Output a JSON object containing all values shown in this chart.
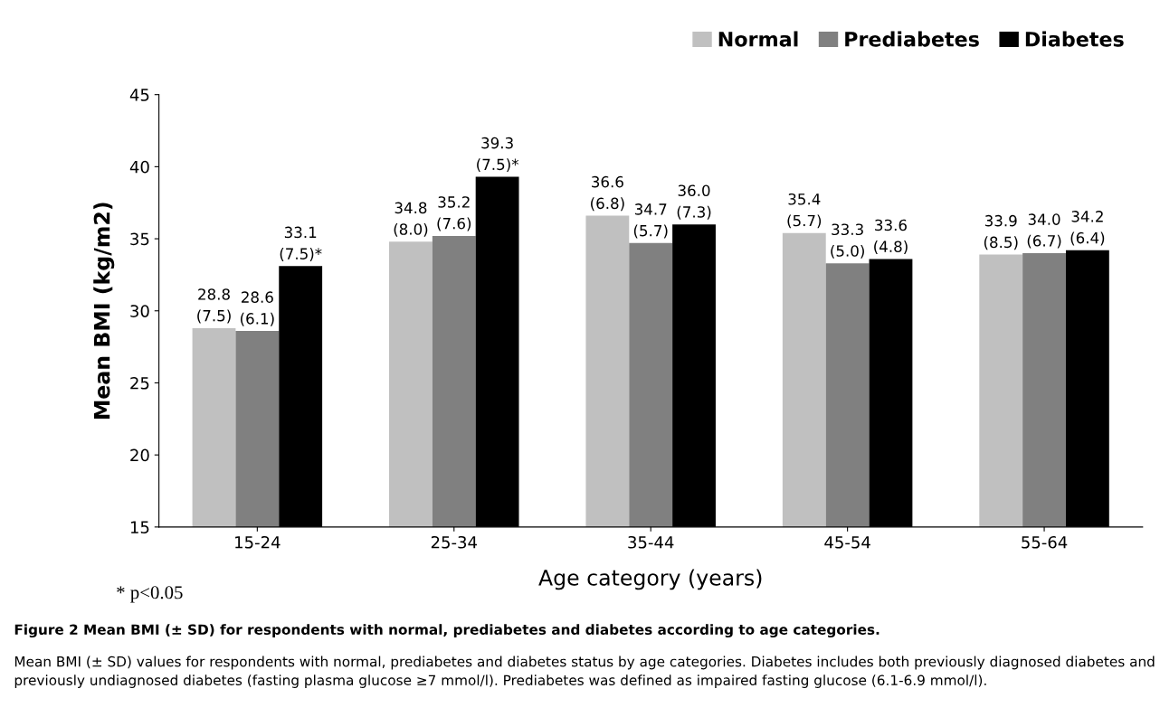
{
  "chart_data": {
    "type": "bar",
    "title": "Figure 2 Mean BMI (± SD) for respondents with normal, prediabetes and diabetes according to age categories.",
    "xlabel": "Age category (years)",
    "ylabel": "Mean BMI (kg/m2)",
    "categories": [
      "15-24",
      "25-34",
      "35-44",
      "45-54",
      "55-64"
    ],
    "series": [
      {
        "name": "Normal",
        "color": "#c0c0c0",
        "values": [
          28.8,
          34.8,
          36.6,
          35.4,
          33.9
        ],
        "value_labels": [
          "28.8\n(7.5)",
          "34.8\n(8.0)",
          "36.6\n(6.8)",
          "35.4\n(5.7)",
          "33.9\n(8.5)"
        ]
      },
      {
        "name": "Prediabetes",
        "color": "#808080",
        "values": [
          28.6,
          35.2,
          34.7,
          33.3,
          34.0
        ],
        "value_labels": [
          "28.6\n(6.1)",
          "35.2\n(7.6)",
          "34.7\n(5.7)",
          "33.3\n(5.0)",
          "34.0\n(6.7)"
        ]
      },
      {
        "name": "Diabetes",
        "color": "#000000",
        "values": [
          33.1,
          39.3,
          36.0,
          33.6,
          34.2
        ],
        "value_labels": [
          "33.1\n(7.5)*",
          "39.3\n(7.5)*",
          "36.0\n(7.3)",
          "33.6\n(4.8)",
          "34.2\n(6.4)"
        ]
      }
    ],
    "ylim": [
      15,
      45
    ],
    "yticks": [
      15,
      20,
      25,
      30,
      35,
      40,
      45
    ],
    "grid": false,
    "legend": "top right",
    "annotations": [
      "* p<0.05",
      "Mean BMI (± SD) values for respondents with normal, prediabetes and diabetes status by age categories. Diabetes includes both previously diagnosed diabetes and previously undiagnosed diabetes (fasting plasma glucose ≥7 mmol/l). Prediabetes was defined as impaired fasting glucose (6.1-6.9 mmol/l)."
    ]
  }
}
